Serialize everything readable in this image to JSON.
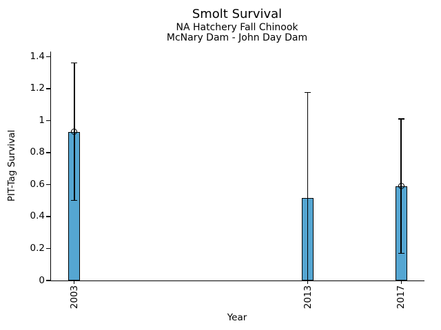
{
  "chart_data": {
    "type": "bar",
    "title": "Smolt Survival",
    "subtitle1": "NA Hatchery Fall Chinook",
    "subtitle2": "McNary Dam - John Day Dam",
    "xlabel": "Year",
    "ylabel": "PIT-Tag Survival",
    "xlim": [
      2002,
      2018
    ],
    "ylim": [
      0,
      1.432
    ],
    "y_ticks": [
      0,
      0.2,
      0.4,
      0.6,
      0.8,
      1,
      1.2,
      1.4
    ],
    "y_tick_labels": [
      "0",
      "0.2",
      "0.4",
      "0.6",
      "0.8",
      "1",
      "1.2",
      "1.4"
    ],
    "grid": false,
    "legend": "none",
    "bar_color": "#55A6D2",
    "bar_edge_color": "#000000",
    "error_color": "#000000",
    "bars": [
      {
        "year": 2003,
        "label": "2003",
        "value": 0.93,
        "ci_low": 0.5,
        "ci_high": 1.36,
        "marker": true,
        "cap_low": true
      },
      {
        "year": 2013,
        "label": "2013",
        "value": 0.515,
        "ci_low": 0.0,
        "ci_high": 1.175,
        "marker": false,
        "cap_low": false
      },
      {
        "year": 2017,
        "label": "2017",
        "value": 0.59,
        "ci_low": 0.17,
        "ci_high": 1.01,
        "marker": true,
        "cap_low": true
      }
    ]
  }
}
